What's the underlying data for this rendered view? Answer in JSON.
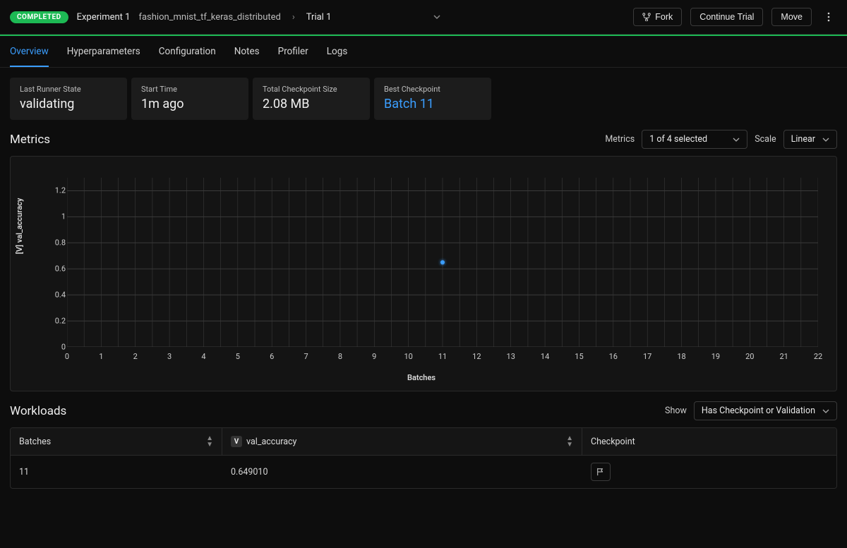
{
  "header": {
    "status_badge": "COMPLETED",
    "experiment": "Experiment 1",
    "config_name": "fashion_mnist_tf_keras_distributed",
    "trial": "Trial 1",
    "fork_label": "Fork",
    "continue_label": "Continue Trial",
    "move_label": "Move"
  },
  "tabs": [
    "Overview",
    "Hyperparameters",
    "Configuration",
    "Notes",
    "Profiler",
    "Logs"
  ],
  "active_tab": 0,
  "cards": [
    {
      "label": "Last Runner State",
      "value": "validating",
      "link": false
    },
    {
      "label": "Start Time",
      "value": "1m ago",
      "link": false
    },
    {
      "label": "Total Checkpoint Size",
      "value": "2.08 MB",
      "link": false
    },
    {
      "label": "Best Checkpoint",
      "value": "Batch 11",
      "link": true
    }
  ],
  "metrics_section": {
    "title": "Metrics",
    "selector_label": "Metrics",
    "selector_value": "1 of 4 selected",
    "scale_label": "Scale",
    "scale_value": "Linear",
    "chart": {
      "ylabel": "[V] val_accuracy",
      "xlabel": "Batches",
      "ylim": [
        0,
        1.3
      ],
      "yticks": [
        0,
        0.2,
        0.4,
        0.6,
        0.8,
        1,
        1.2
      ],
      "xlim": [
        0,
        22
      ],
      "xticks": [
        0,
        1,
        2,
        3,
        4,
        5,
        6,
        7,
        8,
        9,
        10,
        11,
        12,
        13,
        14,
        15,
        16,
        17,
        18,
        19,
        20,
        21,
        22
      ],
      "grid_color": "#3a3a3a",
      "background": "#141414",
      "point_color": "#3b9eff",
      "points": [
        {
          "x": 11,
          "y": 0.65
        }
      ]
    }
  },
  "workloads_section": {
    "title": "Workloads",
    "show_label": "Show",
    "filter_value": "Has Checkpoint or Validation",
    "columns": [
      {
        "label": "Batches",
        "sortable": true
      },
      {
        "label": "val_accuracy",
        "badge": "V",
        "sortable": true
      },
      {
        "label": "Checkpoint",
        "sortable": false
      }
    ],
    "rows": [
      {
        "batches": "11",
        "val_accuracy": "0.649010",
        "has_checkpoint": true
      }
    ]
  }
}
